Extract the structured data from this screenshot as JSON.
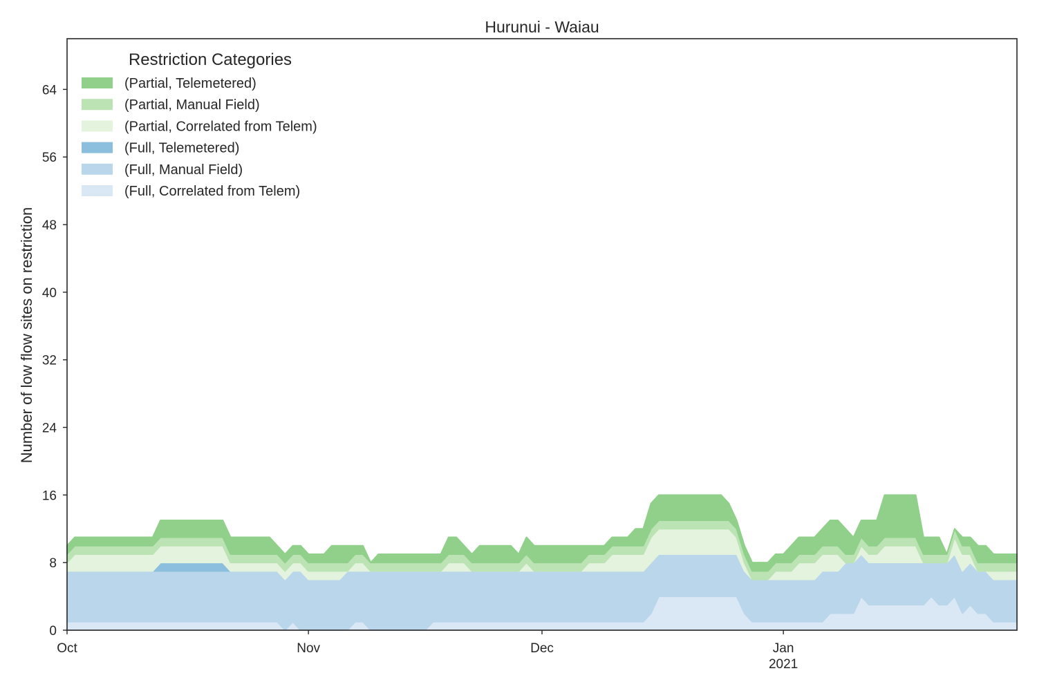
{
  "chart_data": {
    "type": "area",
    "stacked": true,
    "title": "Hurunui - Waiau",
    "xlabel": "",
    "ylabel": "Number of low flow sites on restriction",
    "x_start": "2020-10-01",
    "x_end": "2021-01-31",
    "xlim": [
      "2020-10-01",
      "2021-01-31"
    ],
    "ylim": [
      0,
      70
    ],
    "yticks": [
      0,
      8,
      16,
      24,
      32,
      40,
      48,
      56,
      64
    ],
    "x_ticks": [
      {
        "date": "2020-10-01",
        "label": "Oct",
        "sublabel": ""
      },
      {
        "date": "2020-11-01",
        "label": "Nov",
        "sublabel": ""
      },
      {
        "date": "2020-12-01",
        "label": "Dec",
        "sublabel": ""
      },
      {
        "date": "2021-01-01",
        "label": "Jan",
        "sublabel": "2021"
      }
    ],
    "grid": false,
    "legend": {
      "title": "Restriction Categories",
      "placement": "top-left",
      "entries": [
        "(Partial, Telemetered)",
        "(Partial, Manual Field)",
        "(Partial, Correlated from Telem)",
        "(Full, Telemetered)",
        "(Full, Manual Field)",
        "(Full, Correlated from Telem)"
      ]
    },
    "series": [
      {
        "name": "(Full, Correlated from Telem)",
        "color": "#dae8f5",
        "points": [
          [
            "2020-10-01",
            1
          ],
          [
            "2020-10-28",
            1
          ],
          [
            "2020-10-29",
            0
          ],
          [
            "2020-10-30",
            1
          ],
          [
            "2020-10-31",
            0
          ],
          [
            "2020-11-06",
            0
          ],
          [
            "2020-11-07",
            1
          ],
          [
            "2020-11-08",
            1
          ],
          [
            "2020-11-09",
            0
          ],
          [
            "2020-11-16",
            0
          ],
          [
            "2020-11-17",
            1
          ],
          [
            "2020-12-14",
            1
          ],
          [
            "2020-12-15",
            2
          ],
          [
            "2020-12-16",
            4
          ],
          [
            "2020-12-26",
            4
          ],
          [
            "2020-12-27",
            2
          ],
          [
            "2020-12-28",
            1
          ],
          [
            "2021-01-06",
            1
          ],
          [
            "2021-01-07",
            2
          ],
          [
            "2021-01-09",
            2
          ],
          [
            "2021-01-11",
            4
          ],
          [
            "2021-01-12",
            3
          ],
          [
            "2021-01-19",
            3
          ],
          [
            "2021-01-20",
            4
          ],
          [
            "2021-01-21",
            3
          ],
          [
            "2021-01-22",
            3
          ],
          [
            "2021-01-23",
            4
          ],
          [
            "2021-01-24",
            2
          ],
          [
            "2021-01-25",
            3
          ],
          [
            "2021-01-26",
            2
          ],
          [
            "2021-01-27",
            2
          ],
          [
            "2021-01-28",
            1
          ],
          [
            "2021-01-31",
            1
          ]
        ]
      },
      {
        "name": "(Full, Manual Field)",
        "color": "#bad6eb",
        "points": [
          [
            "2020-10-01",
            6
          ],
          [
            "2020-10-28",
            6
          ],
          [
            "2020-10-29",
            6
          ],
          [
            "2020-10-30",
            6
          ],
          [
            "2020-10-31",
            7
          ],
          [
            "2020-11-01",
            6
          ],
          [
            "2020-11-06",
            7
          ],
          [
            "2020-11-07",
            6
          ],
          [
            "2020-11-08",
            6
          ],
          [
            "2020-11-09",
            7
          ],
          [
            "2020-11-16",
            7
          ],
          [
            "2020-11-17",
            6
          ],
          [
            "2020-11-18",
            6
          ],
          [
            "2020-11-19",
            6
          ],
          [
            "2020-11-20",
            6
          ],
          [
            "2020-11-28",
            6
          ],
          [
            "2020-11-29",
            6
          ],
          [
            "2020-11-30",
            6
          ],
          [
            "2020-12-14",
            6
          ],
          [
            "2020-12-15",
            6
          ],
          [
            "2020-12-16",
            5
          ],
          [
            "2020-12-26",
            5
          ],
          [
            "2020-12-27",
            5
          ],
          [
            "2020-12-28",
            5
          ],
          [
            "2021-01-06",
            6
          ],
          [
            "2021-01-07",
            5
          ],
          [
            "2021-01-09",
            6
          ],
          [
            "2021-01-11",
            5
          ],
          [
            "2021-01-12",
            5
          ],
          [
            "2021-01-19",
            5
          ],
          [
            "2021-01-20",
            4
          ],
          [
            "2021-01-21",
            5
          ],
          [
            "2021-01-22",
            5
          ],
          [
            "2021-01-23",
            5
          ],
          [
            "2021-01-24",
            5
          ],
          [
            "2021-01-25",
            5
          ],
          [
            "2021-01-26",
            5
          ],
          [
            "2021-01-27",
            5
          ],
          [
            "2021-01-28",
            5
          ],
          [
            "2021-01-31",
            5
          ]
        ]
      },
      {
        "name": "(Full, Telemetered)",
        "color": "#8bbfdd",
        "points": [
          [
            "2020-10-01",
            0
          ],
          [
            "2020-10-12",
            0
          ],
          [
            "2020-10-13",
            1
          ],
          [
            "2020-10-21",
            1
          ],
          [
            "2020-10-22",
            0
          ],
          [
            "2021-01-31",
            0
          ]
        ]
      },
      {
        "name": "(Partial, Correlated from Telem)",
        "color": "#e3f3dd",
        "points": [
          [
            "2020-10-01",
            1
          ],
          [
            "2020-10-02",
            2
          ],
          [
            "2020-10-12",
            2
          ],
          [
            "2020-10-13",
            2
          ],
          [
            "2020-10-21",
            2
          ],
          [
            "2020-10-22",
            1
          ],
          [
            "2020-10-28",
            1
          ],
          [
            "2020-10-29",
            1
          ],
          [
            "2020-11-06",
            0
          ],
          [
            "2020-11-07",
            1
          ],
          [
            "2020-11-09",
            0
          ],
          [
            "2020-11-19",
            1
          ],
          [
            "2020-11-20",
            1
          ],
          [
            "2020-11-22",
            0
          ],
          [
            "2020-11-28",
            0
          ],
          [
            "2020-11-29",
            1
          ],
          [
            "2020-11-30",
            0
          ],
          [
            "2020-12-06",
            0
          ],
          [
            "2020-12-07",
            1
          ],
          [
            "2020-12-10",
            2
          ],
          [
            "2020-12-15",
            3
          ],
          [
            "2020-12-26",
            2
          ],
          [
            "2020-12-27",
            1
          ],
          [
            "2020-12-28",
            0
          ],
          [
            "2020-12-31",
            1
          ],
          [
            "2021-01-03",
            2
          ],
          [
            "2021-01-08",
            2
          ],
          [
            "2021-01-09",
            0
          ],
          [
            "2021-01-11",
            1
          ],
          [
            "2021-01-12",
            1
          ],
          [
            "2021-01-14",
            2
          ],
          [
            "2021-01-19",
            0
          ],
          [
            "2021-01-23",
            2
          ],
          [
            "2021-01-25",
            1
          ],
          [
            "2021-01-26",
            0
          ],
          [
            "2021-01-28",
            1
          ],
          [
            "2021-01-31",
            1
          ]
        ]
      },
      {
        "name": "(Partial, Manual Field)",
        "color": "#bbe3b4",
        "points": [
          [
            "2020-10-01",
            1
          ],
          [
            "2020-10-31",
            1
          ],
          [
            "2020-11-06",
            1
          ],
          [
            "2020-11-09",
            1
          ],
          [
            "2020-12-31",
            1
          ],
          [
            "2021-01-31",
            1
          ]
        ]
      },
      {
        "name": "(Partial, Telemetered)",
        "color": "#90d08a",
        "points": [
          [
            "2020-10-01",
            1
          ],
          [
            "2020-10-12",
            1
          ],
          [
            "2020-10-13",
            2
          ],
          [
            "2020-10-21",
            2
          ],
          [
            "2020-10-22",
            2
          ],
          [
            "2020-10-27",
            2
          ],
          [
            "2020-10-28",
            1
          ],
          [
            "2020-11-03",
            1
          ],
          [
            "2020-11-04",
            2
          ],
          [
            "2020-11-06",
            2
          ],
          [
            "2020-11-07",
            1
          ],
          [
            "2020-11-08",
            1
          ],
          [
            "2020-11-09",
            0
          ],
          [
            "2020-11-10",
            1
          ],
          [
            "2020-11-16",
            1
          ],
          [
            "2020-11-19",
            2
          ],
          [
            "2020-11-21",
            1
          ],
          [
            "2020-11-23",
            2
          ],
          [
            "2020-11-27",
            2
          ],
          [
            "2020-11-28",
            1
          ],
          [
            "2020-11-29",
            2
          ],
          [
            "2020-11-30",
            2
          ],
          [
            "2020-12-06",
            2
          ],
          [
            "2020-12-07",
            1
          ],
          [
            "2020-12-10",
            1
          ],
          [
            "2020-12-13",
            2
          ],
          [
            "2020-12-15",
            3
          ],
          [
            "2020-12-17",
            3
          ],
          [
            "2020-12-18",
            3
          ],
          [
            "2020-12-21",
            3
          ],
          [
            "2020-12-23",
            3
          ],
          [
            "2020-12-25",
            2
          ],
          [
            "2020-12-26",
            1
          ],
          [
            "2020-12-27",
            1
          ],
          [
            "2020-12-28",
            1
          ],
          [
            "2021-01-02",
            2
          ],
          [
            "2021-01-06",
            2
          ],
          [
            "2021-01-07",
            3
          ],
          [
            "2021-01-09",
            3
          ],
          [
            "2021-01-10",
            2
          ],
          [
            "2021-01-12",
            3
          ],
          [
            "2021-01-14",
            5
          ],
          [
            "2021-01-18",
            5
          ],
          [
            "2021-01-19",
            2
          ],
          [
            "2021-01-22",
            0
          ],
          [
            "2021-01-24",
            1
          ],
          [
            "2021-01-26",
            2
          ],
          [
            "2021-01-27",
            2
          ],
          [
            "2021-01-28",
            1
          ],
          [
            "2021-01-31",
            1
          ]
        ]
      }
    ]
  }
}
